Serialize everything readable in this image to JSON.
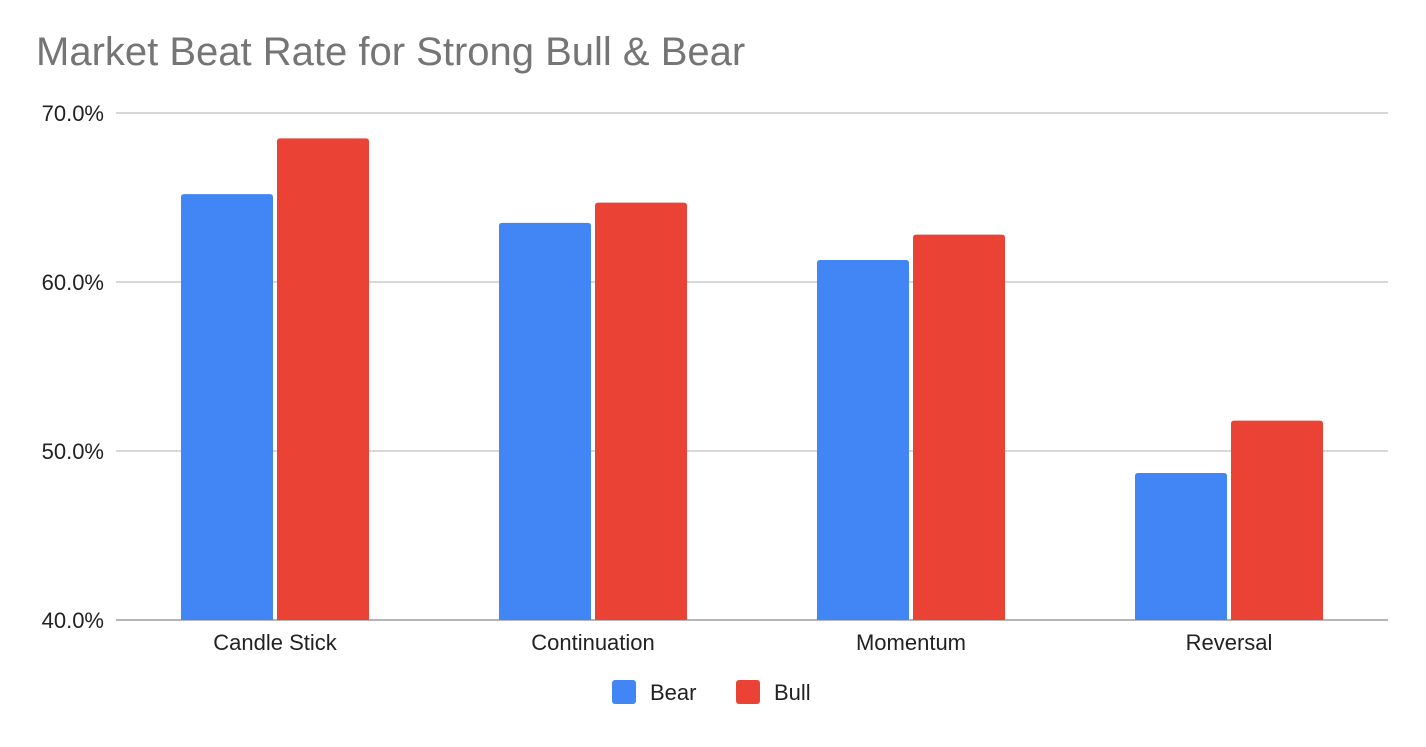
{
  "chart_data": {
    "type": "bar",
    "title": "Market Beat Rate for Strong Bull & Bear",
    "xlabel": "",
    "ylabel": "",
    "categories": [
      "Candle Stick",
      "Continuation",
      "Momentum",
      "Reversal"
    ],
    "series": [
      {
        "name": "Bear",
        "color": "#4285f4",
        "values": [
          65.2,
          63.5,
          61.3,
          48.7
        ]
      },
      {
        "name": "Bull",
        "color": "#ea4335",
        "values": [
          68.5,
          64.7,
          62.8,
          51.8
        ]
      }
    ],
    "ylim": [
      40,
      70
    ],
    "yticks": [
      {
        "value": 40,
        "label": "40.0%"
      },
      {
        "value": 50,
        "label": "50.0%"
      },
      {
        "value": 60,
        "label": "60.0%"
      },
      {
        "value": 70,
        "label": "70.0%"
      }
    ],
    "grid": true,
    "legend": "bottom"
  }
}
